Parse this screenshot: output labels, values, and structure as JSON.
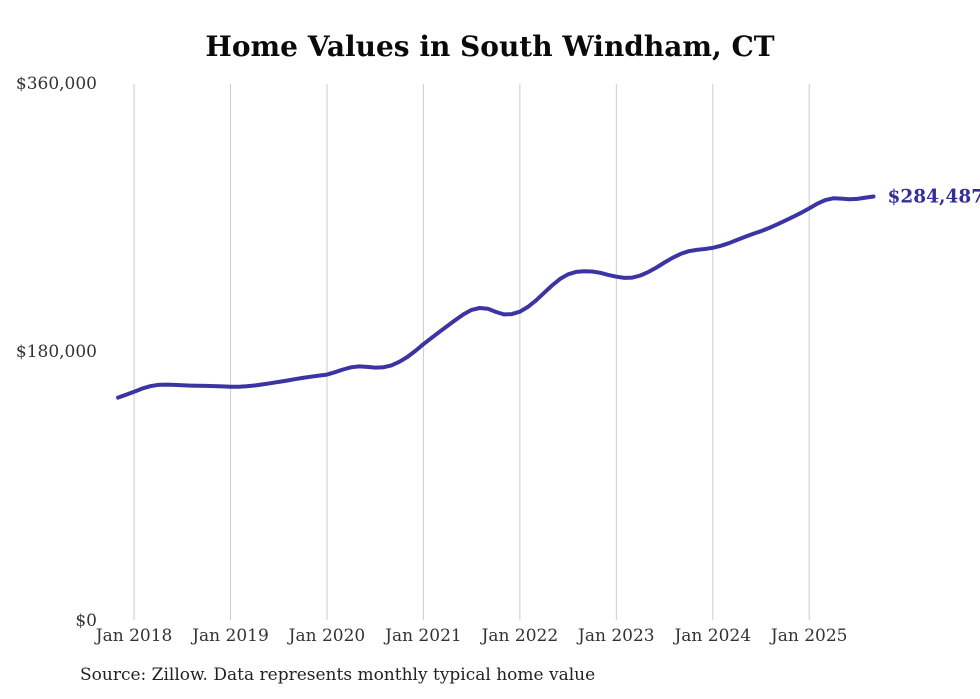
{
  "page": {
    "title": "Home Values in South Windham, CT",
    "source_note": "Source: Zillow. Data represents monthly typical home value"
  },
  "colors": {
    "line": "#3b34a2",
    "end_label": "#332d9b",
    "gridline": "#cccccc",
    "axis_text": "#333333",
    "background": "#ffffff"
  },
  "chart_data": {
    "type": "line",
    "title": "Home Values in South Windham, CT",
    "xlabel": "",
    "ylabel": "",
    "grid": "vertical-only",
    "legend": "none",
    "ylim": [
      0,
      360000
    ],
    "y_ticks": [
      {
        "value": 0,
        "label": "$0"
      },
      {
        "value": 180000,
        "label": "$180,000"
      },
      {
        "value": 360000,
        "label": "$360,000"
      }
    ],
    "x_tick_labels": [
      "Jan 2018",
      "Jan 2019",
      "Jan 2020",
      "Jan 2021",
      "Jan 2022",
      "Jan 2023",
      "Jan 2024",
      "Jan 2025"
    ],
    "start_year": 2017,
    "start_month": 11,
    "x_start_label": "Nov 2017",
    "x_end_label": "Sep 2025",
    "end_label": "$284,487",
    "latest_value": 284487,
    "series": [
      {
        "name": "Monthly typical home value",
        "values": [
          149600,
          151500,
          153500,
          155600,
          157200,
          158100,
          158300,
          158100,
          157800,
          157600,
          157500,
          157400,
          157300,
          157100,
          156900,
          156900,
          157200,
          157700,
          158400,
          159200,
          160100,
          161000,
          161900,
          162800,
          163600,
          164300,
          165000,
          166600,
          168400,
          169900,
          170500,
          170200,
          169700,
          169900,
          171200,
          173600,
          176800,
          180900,
          185400,
          189600,
          193700,
          197700,
          201700,
          205500,
          208400,
          209700,
          209200,
          207100,
          205400,
          205600,
          207200,
          210400,
          214800,
          219800,
          224800,
          229200,
          232300,
          233900,
          234400,
          234200,
          233300,
          231900,
          230700,
          229900,
          230100,
          231500,
          233900,
          236900,
          240200,
          243400,
          246000,
          247800,
          248700,
          249300,
          250100,
          251400,
          253200,
          255300,
          257400,
          259400,
          261200,
          263400,
          265800,
          268300,
          270900,
          273600,
          276500,
          279700,
          282100,
          283300,
          283100,
          282600,
          282900,
          283800,
          284487
        ]
      }
    ]
  }
}
